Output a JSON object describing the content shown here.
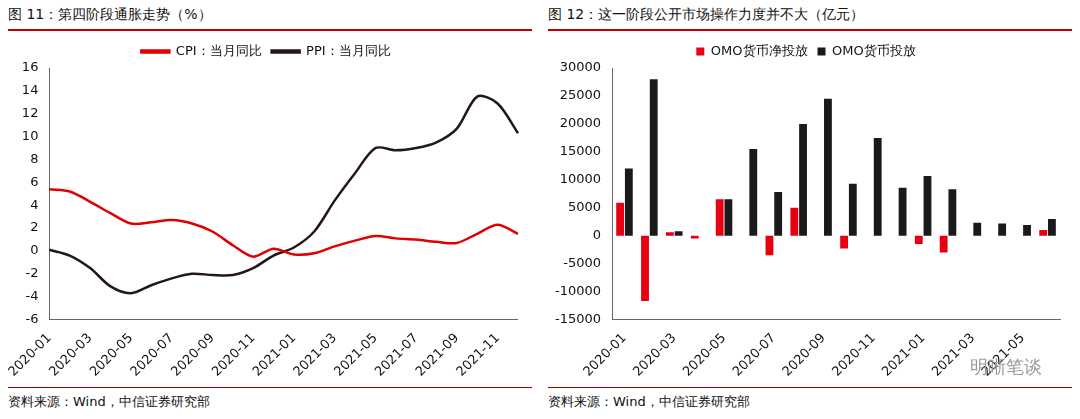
{
  "chart_data": [
    {
      "type": "line",
      "title": "图 11：第四阶段通胀走势（%）",
      "source": "资料来源：Wind，中信证券研究部",
      "categories": [
        "2020-01",
        null,
        "2020-03",
        null,
        "2020-05",
        null,
        "2020-07",
        null,
        "2020-09",
        null,
        "2020-11",
        null,
        "2021-01",
        null,
        "2021-03",
        null,
        "2021-05",
        null,
        "2021-07",
        null,
        "2021-09",
        null,
        "2021-11",
        null
      ],
      "series": [
        {
          "name": "CPI：当月同比",
          "color": "#e00000",
          "values": [
            5.4,
            5.2,
            4.3,
            3.3,
            2.4,
            2.5,
            2.7,
            2.4,
            1.7,
            0.5,
            -0.5,
            0.2,
            -0.3,
            -0.2,
            0.4,
            0.9,
            1.3,
            1.1,
            1.0,
            0.8,
            0.7,
            1.5,
            2.3,
            1.5
          ]
        },
        {
          "name": "PPI：当月同比",
          "color": "#231815",
          "values": [
            0.1,
            -0.4,
            -1.5,
            -3.1,
            -3.7,
            -3.0,
            -2.4,
            -2.0,
            -2.1,
            -2.1,
            -1.5,
            -0.4,
            0.3,
            1.7,
            4.4,
            6.8,
            9.0,
            8.8,
            9.0,
            9.5,
            10.7,
            13.5,
            12.9,
            10.3
          ]
        }
      ],
      "ylim": [
        -6,
        16
      ],
      "yticks": [
        -6,
        -4,
        -2,
        0,
        2,
        4,
        6,
        8,
        10,
        12,
        14,
        16
      ],
      "grid": false,
      "legend": "top"
    },
    {
      "type": "bar",
      "title": "图 12：这一阶段公开市场操作力度并不大（亿元）",
      "source": "资料来源：Wind，中信证券研究部",
      "annotation": "明晰笔谈",
      "categories": [
        "2020-01",
        null,
        "2020-03",
        null,
        "2020-05",
        null,
        "2020-07",
        null,
        "2020-09",
        null,
        "2020-11",
        null,
        "2021-01",
        null,
        "2021-03",
        null,
        "2021-05",
        null
      ],
      "series": [
        {
          "name": "OMO货币净投放",
          "color": "#e60012",
          "values": [
            5900,
            -11700,
            600,
            -500,
            6500,
            0,
            -3500,
            5000,
            0,
            -2300,
            0,
            0,
            -1500,
            -3000,
            0,
            0,
            0,
            1000
          ]
        },
        {
          "name": "OMO货币投放",
          "color": "#1a1a1a",
          "values": [
            12000,
            28000,
            800,
            0,
            6500,
            15500,
            7800,
            20000,
            24500,
            9300,
            17500,
            8600,
            10700,
            8300,
            2300,
            2200,
            1900,
            3000
          ]
        }
      ],
      "ylim": [
        -15000,
        30000
      ],
      "yticks": [
        -15000,
        -10000,
        -5000,
        0,
        5000,
        10000,
        15000,
        20000,
        25000,
        30000
      ],
      "grid": false,
      "legend": "top"
    }
  ]
}
